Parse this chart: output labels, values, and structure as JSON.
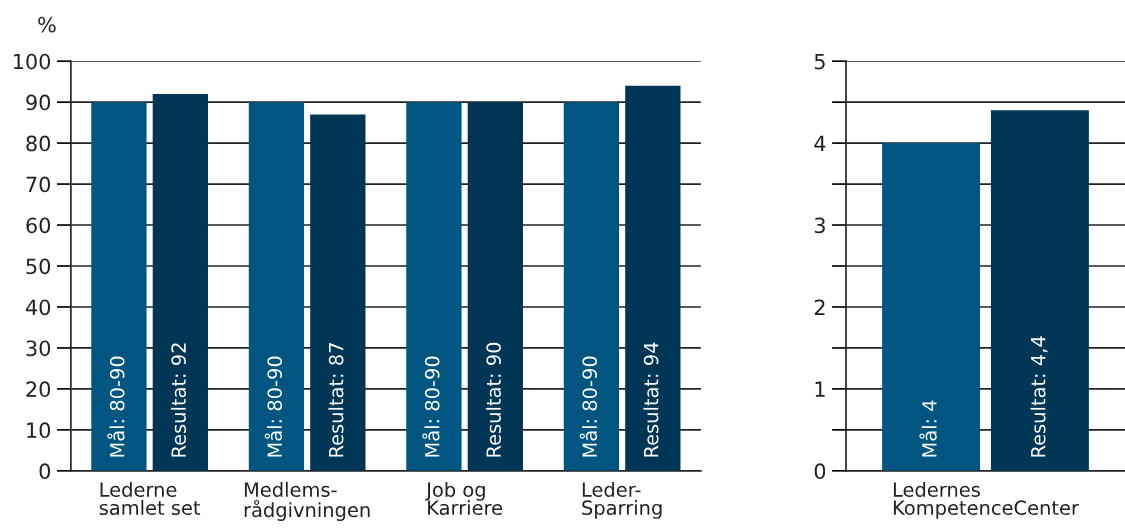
{
  "chart_data": [
    {
      "type": "bar",
      "ylabel": "%",
      "categories": [
        "Lederne\nsamlet set",
        "Medlems-\nrådgivningen",
        "Job og\nKarriere",
        "Leder-\nSparring"
      ],
      "ylim": [
        0,
        100
      ],
      "yticks": [
        0,
        10,
        20,
        30,
        40,
        50,
        60,
        70,
        80,
        90,
        100
      ],
      "grid": "y",
      "series": [
        {
          "color": "#005581",
          "values": [
            90,
            90,
            90,
            90
          ],
          "value_labels": [
            "Mål: 80-90",
            "Mål: 80-90",
            "Mål: 80-90",
            "Mål: 80-90"
          ]
        },
        {
          "color": "#003655",
          "values": [
            92,
            87,
            90,
            94
          ],
          "value_labels": [
            "Resultat: 92",
            "Resultat: 87",
            "Resultat: 90",
            "Resultat: 94"
          ]
        }
      ]
    },
    {
      "type": "bar",
      "categories": [
        "Ledernes\nKompetenceCenter"
      ],
      "ylim": [
        0,
        5
      ],
      "yticks": [
        0,
        {
          "value": 0.5,
          "label": null
        },
        1,
        {
          "value": 1.5,
          "label": null
        },
        2,
        {
          "value": 2.5,
          "label": null
        },
        3,
        {
          "value": 3.5,
          "label": null
        },
        4,
        {
          "value": 4.5,
          "label": null
        },
        5
      ],
      "grid": "y",
      "series": [
        {
          "color": "#005581",
          "values": [
            4
          ],
          "value_labels": [
            "Mål: 4"
          ]
        },
        {
          "color": "#003655",
          "values": [
            4.4
          ],
          "value_labels": [
            "Resultat: 4,4"
          ]
        }
      ]
    }
  ]
}
